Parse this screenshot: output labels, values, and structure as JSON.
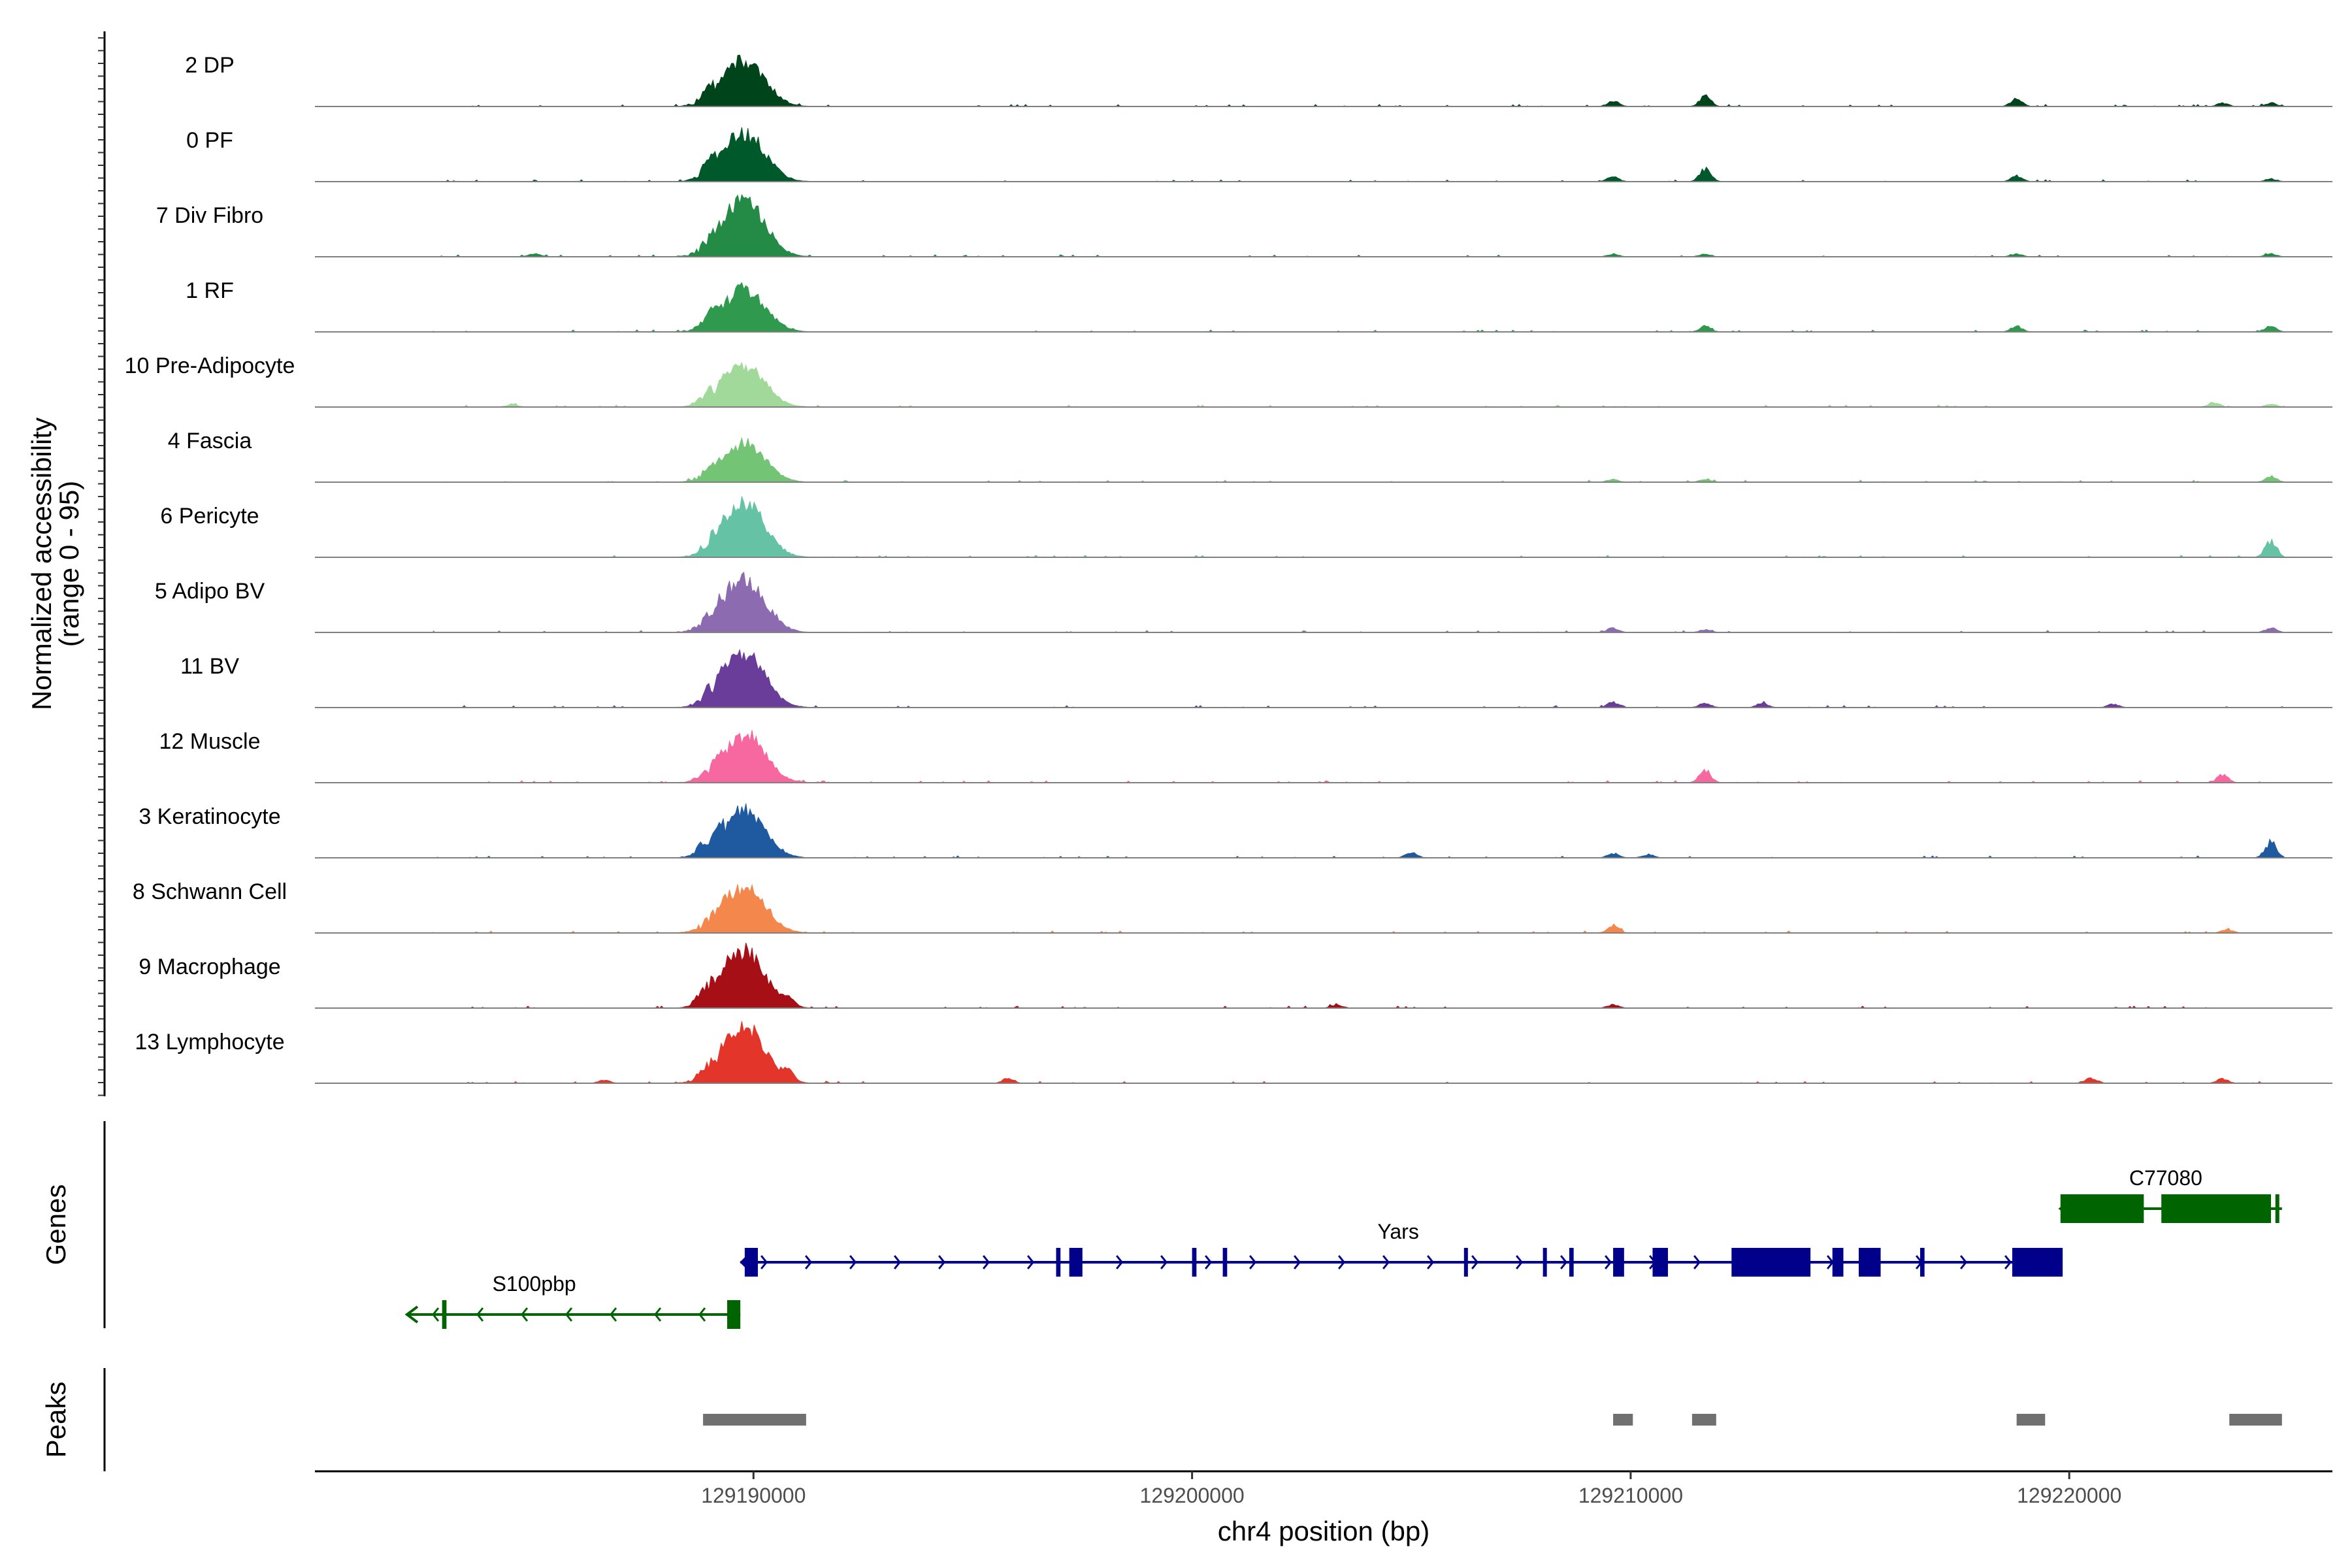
{
  "chart_data": {
    "type": "area",
    "title": "",
    "ylabel_line1": "Normalized accessibility",
    "ylabel_line2": "(range 0 - 95)",
    "ylim": [
      0,
      95
    ],
    "xlabel": "chr4 position (bp)",
    "xlim": [
      129180000,
      129226000
    ],
    "x_ticks": [
      129190000,
      129200000,
      129210000,
      129220000
    ],
    "x_tick_labels": [
      "129190000",
      "129200000",
      "129210000",
      "129220000"
    ],
    "tracks": [
      {
        "label": "2 DP",
        "color": "#00441b",
        "summit": 78,
        "minor": [
          [
            129189000,
            8
          ],
          [
            129209600,
            10
          ],
          [
            129211700,
            18
          ],
          [
            129218800,
            14
          ],
          [
            129223500,
            6
          ],
          [
            129224600,
            6
          ]
        ]
      },
      {
        "label": "0 PF",
        "color": "#00592a",
        "summit": 82,
        "minor": [
          [
            129189000,
            8
          ],
          [
            129209600,
            9
          ],
          [
            129211700,
            24
          ],
          [
            129218800,
            10
          ],
          [
            129224600,
            5
          ]
        ]
      },
      {
        "label": "7 Div Fibro",
        "color": "#238b45",
        "summit": 95,
        "minor": [
          [
            129185000,
            6
          ],
          [
            129209600,
            5
          ],
          [
            129211700,
            5
          ],
          [
            129218800,
            5
          ],
          [
            129224600,
            5
          ]
        ]
      },
      {
        "label": "1 RF",
        "color": "#2f9a4e",
        "summit": 72,
        "minor": [
          [
            129189000,
            12
          ],
          [
            129211700,
            10
          ],
          [
            129218800,
            10
          ],
          [
            129224600,
            10
          ]
        ]
      },
      {
        "label": "10 Pre-Adipocyte",
        "color": "#a1d99b",
        "summit": 70,
        "minor": [
          [
            129184500,
            5
          ],
          [
            129188800,
            5
          ],
          [
            129223300,
            8
          ],
          [
            129224600,
            5
          ]
        ]
      },
      {
        "label": "4 Fascia",
        "color": "#74c476",
        "summit": 65,
        "minor": [
          [
            129209600,
            5
          ],
          [
            129211700,
            5
          ],
          [
            129224600,
            10
          ]
        ]
      },
      {
        "label": "6 Pericyte",
        "color": "#66c2a4",
        "summit": 90,
        "minor": [
          [
            129224600,
            30
          ]
        ]
      },
      {
        "label": "5 Adipo BV",
        "color": "#8c6bb1",
        "summit": 90,
        "minor": [
          [
            129209600,
            8
          ],
          [
            129211700,
            5
          ],
          [
            129224600,
            8
          ]
        ]
      },
      {
        "label": "11 BV",
        "color": "#6a3d9a",
        "summit": 92,
        "minor": [
          [
            129209600,
            10
          ],
          [
            129211700,
            8
          ],
          [
            129213000,
            8
          ],
          [
            129221000,
            6
          ]
        ]
      },
      {
        "label": "12 Muscle",
        "color": "#f768a1",
        "summit": 80,
        "minor": [
          [
            129211700,
            22
          ],
          [
            129223500,
            14
          ]
        ]
      },
      {
        "label": "3 Keratinocyte",
        "color": "#1f5aa0",
        "summit": 80,
        "minor": [
          [
            129188800,
            8
          ],
          [
            129205000,
            10
          ],
          [
            129209600,
            8
          ],
          [
            129210400,
            6
          ],
          [
            129224600,
            28
          ]
        ]
      },
      {
        "label": "8 Schwann Cell",
        "color": "#f4874b",
        "summit": 75,
        "minor": [
          [
            129209600,
            14
          ],
          [
            129223600,
            6
          ]
        ]
      },
      {
        "label": "9 Macrophage",
        "color": "#a50f15",
        "summit": 95,
        "minor": [
          [
            129188800,
            12
          ],
          [
            129190800,
            14
          ],
          [
            129203300,
            6
          ],
          [
            129209600,
            6
          ]
        ]
      },
      {
        "label": "13 Lymphocyte",
        "color": "#e3352a",
        "summit": 95,
        "minor": [
          [
            129186600,
            6
          ],
          [
            129190800,
            15
          ],
          [
            129195800,
            8
          ],
          [
            129220500,
            10
          ],
          [
            129223500,
            8
          ]
        ]
      }
    ],
    "genes_label": "Genes",
    "genes": [
      {
        "name": "S100pbp",
        "strand": "-",
        "color": "#006400",
        "start": 129182100,
        "end": 129189700,
        "exons": [
          [
            129182900,
            129183000
          ],
          [
            129189400,
            129189700
          ]
        ]
      },
      {
        "name": "Yars",
        "strand": "+",
        "color": "#00008b",
        "start": 129189700,
        "end": 129219800,
        "exons": [
          [
            129189800,
            129190100
          ],
          [
            129196900,
            129197000
          ],
          [
            129197200,
            129197500
          ],
          [
            129200000,
            129200100
          ],
          [
            129200700,
            129200800
          ],
          [
            129206200,
            129206250
          ],
          [
            129208000,
            129208060
          ],
          [
            129208600,
            129208700
          ],
          [
            129209600,
            129209850
          ],
          [
            129210500,
            129210850
          ],
          [
            129212300,
            129214100
          ],
          [
            129214600,
            129214850
          ],
          [
            129215200,
            129215700
          ],
          [
            129216600,
            129216700
          ],
          [
            129218700,
            129219850
          ]
        ]
      },
      {
        "name": "C77080",
        "strand": "-",
        "color": "#006400",
        "start": 129219800,
        "end": 129224850,
        "exons": [
          [
            129219800,
            129221700
          ],
          [
            129222100,
            129224600
          ],
          [
            129224700,
            129224780
          ]
        ]
      }
    ],
    "peaks_label": "Peaks",
    "peaks_color": "#707070",
    "peaks": [
      [
        129188850,
        129191200
      ],
      [
        129209600,
        129210050
      ],
      [
        129211400,
        129211950
      ],
      [
        129218800,
        129219450
      ],
      [
        129223650,
        129224850
      ]
    ]
  }
}
